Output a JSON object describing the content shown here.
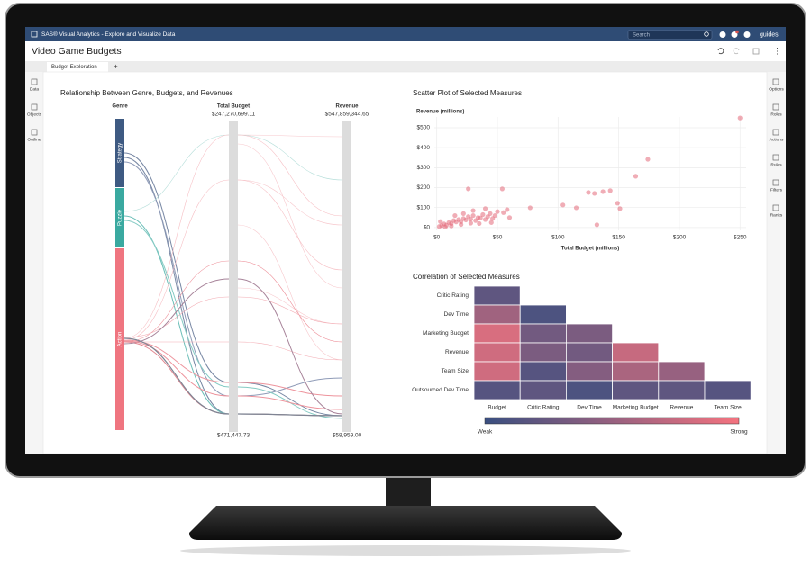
{
  "window": {
    "app_title": "SAS® Visual Analytics - Explore and Visualize Data",
    "search": "Search",
    "user": "guides"
  },
  "report": {
    "title": "Video Game Budgets",
    "tab": "Budget Exploration",
    "add_tab": "+"
  },
  "left_rail": [
    "Data",
    "Objects",
    "Outline"
  ],
  "right_rail": [
    "Options",
    "Roles",
    "Actions",
    "Rules",
    "Filters",
    "Ranks"
  ],
  "chart_data": [
    {
      "type": "parallel",
      "title": "Relationship Between Genre, Budgets, and Revenues",
      "dimensions": [
        "Genre",
        "Total Budget",
        "Revenue"
      ],
      "categories": [
        "Strategy",
        "Puzzle",
        "Action"
      ],
      "colors": [
        "#3e5a82",
        "#3aa9a0",
        "#ef7580"
      ],
      "axis_max_labels": [
        "$247,270,699.11",
        "$547,859,344.65"
      ],
      "axis_min_labels": [
        "$471,447.73",
        "$58,959.00"
      ]
    },
    {
      "type": "scatter",
      "title": "Scatter Plot of Selected Measures",
      "ylabel": "Revenue (millions)",
      "xlabel": "Total Budget (millions)",
      "color": "#e46a7a",
      "x": [
        250,
        174,
        164,
        143,
        137,
        125,
        130,
        149,
        151,
        132,
        104,
        115,
        77,
        54,
        26,
        2,
        4,
        6,
        8,
        10,
        12,
        14,
        16,
        18,
        20,
        22,
        24,
        26,
        28,
        30,
        32,
        34,
        36,
        38,
        40,
        42,
        44,
        46,
        48,
        50,
        55,
        58,
        3,
        7,
        12,
        20,
        28,
        35,
        45,
        60,
        15,
        22,
        30,
        40
      ],
      "y": [
        549,
        342,
        257,
        185,
        180,
        176,
        171,
        122,
        95,
        14,
        113,
        99,
        99,
        194,
        194,
        5,
        10,
        18,
        12,
        25,
        20,
        35,
        28,
        40,
        30,
        45,
        38,
        55,
        42,
        60,
        35,
        50,
        48,
        65,
        40,
        55,
        70,
        45,
        60,
        80,
        75,
        90,
        30,
        2,
        8,
        15,
        22,
        20,
        25,
        50,
        60,
        70,
        85,
        95
      ],
      "xlim": [
        -2,
        255
      ],
      "ylim": [
        -14,
        554
      ],
      "xticks": [
        {
          "value": 0,
          "label": "$0"
        },
        {
          "value": 50,
          "label": "$50"
        },
        {
          "value": 100,
          "label": "$100"
        },
        {
          "value": 150,
          "label": "$150"
        },
        {
          "value": 200,
          "label": "$200"
        },
        {
          "value": 250,
          "label": "$250"
        }
      ],
      "yticks": [
        {
          "value": 0,
          "label": "$0"
        },
        {
          "value": 100,
          "label": "$100"
        },
        {
          "value": 200,
          "label": "$200"
        },
        {
          "value": 300,
          "label": "$300"
        },
        {
          "value": 400,
          "label": "$400"
        },
        {
          "value": 500,
          "label": "$500"
        }
      ],
      "grid": true
    },
    {
      "type": "heatmap",
      "title": "Correlation of Selected Measures",
      "rows": [
        "Critic Rating",
        "Dev Time",
        "Marketing Budget",
        "Revenue",
        "Team Size",
        "Outsourced Dev Time"
      ],
      "columns": [
        "Budget",
        "Critic Rating",
        "Dev Time",
        "Marketing Budget",
        "Revenue",
        "Team Size"
      ],
      "values": [
        [
          0.2
        ],
        [
          0.55,
          0.1
        ],
        [
          0.85,
          0.3,
          0.35
        ],
        [
          0.8,
          0.35,
          0.3,
          0.75
        ],
        [
          0.8,
          0.15,
          0.4,
          0.6,
          0.5
        ],
        [
          0.15,
          0.2,
          0.1,
          0.2,
          0.2,
          0.15
        ]
      ],
      "zlim": [
        0,
        1
      ],
      "colors": [
        "#3a4f80",
        "#f4737f"
      ],
      "legend_labels": [
        "Weak",
        "Strong"
      ]
    }
  ]
}
